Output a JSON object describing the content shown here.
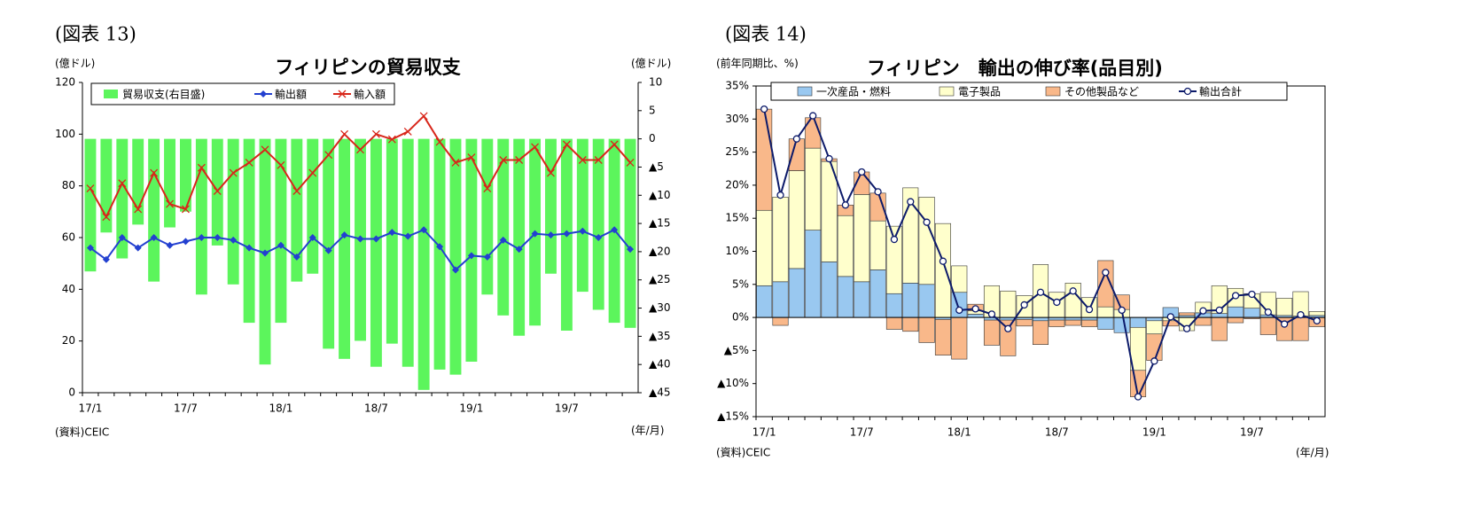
{
  "chart_data": [
    {
      "type": "bar_line",
      "figure_label": "(図表 13)",
      "title": "フィリピンの貿易収支",
      "y_unit": "(億ドル)",
      "y2_unit": "(億ドル)",
      "x_unit": "(年/月)",
      "source": "(資料)CEIC",
      "categories": [
        "17/1",
        null,
        null,
        null,
        null,
        null,
        "17/7",
        null,
        null,
        null,
        null,
        null,
        "18/1",
        null,
        null,
        null,
        null,
        null,
        "18/7",
        null,
        null,
        null,
        null,
        null,
        "19/1",
        null,
        null,
        null,
        null,
        null,
        "19/7",
        null,
        null,
        null,
        null
      ],
      "ylim": [
        0,
        120
      ],
      "yticks": [
        0,
        20,
        40,
        60,
        80,
        100,
        120
      ],
      "y2lim": [
        -45,
        10
      ],
      "y2ticks": [
        10,
        5,
        0,
        {
          "value": -5,
          "label": "▲5"
        },
        {
          "value": -10,
          "label": "▲10"
        },
        {
          "value": -15,
          "label": "▲15"
        },
        {
          "value": -20,
          "label": "▲20"
        },
        {
          "value": -25,
          "label": "▲25"
        },
        {
          "value": -30,
          "label": "▲30"
        },
        {
          "value": -35,
          "label": "▲35"
        },
        {
          "value": -40,
          "label": "▲40"
        },
        {
          "value": -45,
          "label": "▲45"
        }
      ],
      "series": [
        {
          "name": "貿易収支(右目盛)",
          "type": "bar",
          "axis": "y2",
          "color": "#5cf55c",
          "values": [
            -23.5,
            -16.6,
            -21.2,
            -15.2,
            -25.3,
            -15.7,
            -12.9,
            -27.6,
            -18.9,
            -25.8,
            -32.6,
            -40,
            -32.6,
            -25.3,
            -23.9,
            -37.2,
            -39,
            -35.8,
            -40.4,
            -36.3,
            -40.4,
            -44.5,
            -40.9,
            -41.8,
            -39.5,
            -27.6,
            -31.3,
            -34.9,
            -33.1,
            -23.9,
            -34,
            -27.1,
            -30.3,
            -32.6,
            -33.5
          ]
        },
        {
          "name": "輸出額",
          "type": "line",
          "marker": "diamond",
          "color": "#2340d0",
          "values": [
            56,
            51.5,
            60,
            56,
            60,
            57,
            58.5,
            60,
            60,
            59,
            56,
            54,
            57,
            52.5,
            60,
            55,
            61,
            59.5,
            59.5,
            62,
            60.5,
            63,
            56.5,
            47.5,
            53,
            52.5,
            59,
            55.5,
            61.5,
            61,
            61.5,
            62.5,
            60,
            63,
            55.5
          ]
        },
        {
          "name": "輸入額",
          "type": "line",
          "marker": "x",
          "color": "#d8261a",
          "values": [
            79,
            68,
            81,
            71,
            85,
            73,
            71,
            87,
            78,
            85,
            89,
            94,
            88,
            78,
            85,
            92,
            100,
            94,
            100,
            98,
            101,
            107,
            97,
            89,
            91,
            79,
            90,
            90,
            95,
            85,
            96,
            90,
            90,
            96,
            89
          ]
        }
      ]
    },
    {
      "type": "bar_line",
      "figure_label": "(図表 14)",
      "title": "フィリピン　輸出の伸び率(品目別)",
      "y_unit": "(前年同期比、%)",
      "x_unit": "(年/月)",
      "source": "(資料)CEIC",
      "categories": [
        "17/1",
        null,
        null,
        null,
        null,
        null,
        "17/7",
        null,
        null,
        null,
        null,
        null,
        "18/1",
        null,
        null,
        null,
        null,
        null,
        "18/7",
        null,
        null,
        null,
        null,
        null,
        "19/1",
        null,
        null,
        null,
        null,
        null,
        "19/7",
        null,
        null,
        null,
        null
      ],
      "ylim": [
        -15,
        35
      ],
      "yticks": [
        {
          "value": 35,
          "label": "35%"
        },
        {
          "value": 30,
          "label": "30%"
        },
        {
          "value": 25,
          "label": "25%"
        },
        {
          "value": 20,
          "label": "20%"
        },
        {
          "value": 15,
          "label": "15%"
        },
        {
          "value": 10,
          "label": "10%"
        },
        {
          "value": 5,
          "label": "5%"
        },
        {
          "value": 0,
          "label": "0%"
        },
        {
          "value": -5,
          "label": "▲5%"
        },
        {
          "value": -10,
          "label": "▲10%"
        },
        {
          "value": -15,
          "label": "▲15%"
        }
      ],
      "series": [
        {
          "name": "一次産品・燃料",
          "type": "bar",
          "color": "#99c8f0",
          "values": [
            4.8,
            5.4,
            7.4,
            13.2,
            8.4,
            6.2,
            5.4,
            7.2,
            3.6,
            5.2,
            5,
            -0.3,
            3.8,
            0.5,
            -0.4,
            -0.4,
            -0.3,
            -0.5,
            -0.4,
            -0.4,
            -0.4,
            -1.8,
            -2.3,
            -1.5,
            -0.5,
            1.5,
            0.3,
            0.7,
            0.6,
            1.6,
            1.4,
            0.4,
            0.3,
            0.2,
            0.3
          ]
        },
        {
          "name": "電子製品",
          "type": "bar",
          "color": "#ffffcc",
          "values": [
            11.4,
            12.8,
            14.8,
            12.4,
            15.2,
            9.2,
            13.2,
            7.4,
            10.2,
            14.4,
            13.2,
            14.2,
            4,
            0.5,
            4.8,
            4,
            3.3,
            8,
            3.8,
            5.2,
            3,
            1.6,
            1.2,
            -6.5,
            -2,
            -0.5,
            -2,
            1.6,
            4.2,
            2.8,
            2.2,
            3.4,
            2.6,
            3.7,
            0.6
          ]
        },
        {
          "name": "その他製品など",
          "type": "bar",
          "color": "#f9b88a",
          "values": [
            15.3,
            -1.2,
            4.8,
            4.6,
            0.4,
            1.6,
            3.4,
            4.2,
            -1.8,
            -2.1,
            -3.8,
            -5.4,
            -6.3,
            1,
            -3.8,
            -5.4,
            -1,
            -3.6,
            -1,
            -0.8,
            -1,
            7,
            2.2,
            -4,
            -4,
            -0.8,
            0.4,
            -1.2,
            -3.5,
            -0.8,
            -0.2,
            -2.6,
            -3.5,
            -3.5,
            -1.4
          ]
        },
        {
          "name": "輸出合計",
          "type": "line",
          "marker": "circle",
          "color": "#0c1a6a",
          "values": [
            31.5,
            18.5,
            27,
            30.5,
            24,
            17,
            22,
            19,
            11.8,
            17.5,
            14.4,
            8.5,
            1.1,
            1.3,
            0.5,
            -1.7,
            1.9,
            3.8,
            2.3,
            4,
            1.2,
            6.8,
            1.1,
            -12,
            -6.6,
            0.1,
            -1.7,
            1,
            1.1,
            3.3,
            3.5,
            0.8,
            -1,
            0.4,
            -0.5
          ]
        }
      ]
    }
  ]
}
